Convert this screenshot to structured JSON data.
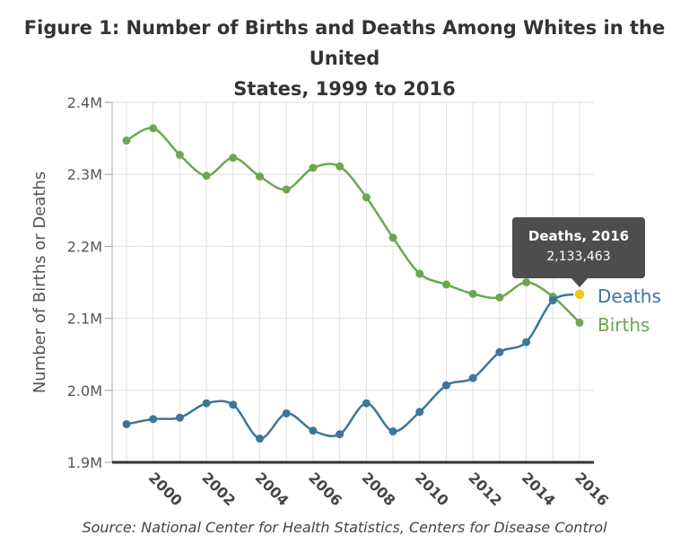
{
  "chart_data": {
    "type": "line",
    "title_line1": "Figure 1: Number of Births and Deaths Among Whites in the United",
    "title_line2": "States, 1999 to 2016",
    "ylabel": "Number of Births or Deaths",
    "source": "Source: National Center for Health Statistics, Centers for Disease Control",
    "x": [
      1999,
      2000,
      2001,
      2002,
      2003,
      2004,
      2005,
      2006,
      2007,
      2008,
      2009,
      2010,
      2011,
      2012,
      2013,
      2014,
      2015,
      2016
    ],
    "xlim": [
      1999,
      2016
    ],
    "x_ticks": [
      "2000",
      "2002",
      "2004",
      "2006",
      "2008",
      "2010",
      "2012",
      "2014",
      "2016"
    ],
    "ylim": [
      1900000,
      2400000
    ],
    "y_ticks": [
      {
        "value": 1900000,
        "label": "1.9M"
      },
      {
        "value": 2000000,
        "label": "2.0M"
      },
      {
        "value": 2100000,
        "label": "2.1M"
      },
      {
        "value": 2200000,
        "label": "2.2M"
      },
      {
        "value": 2300000,
        "label": "2.3M"
      },
      {
        "value": 2400000,
        "label": "2.4M"
      }
    ],
    "grid": true,
    "series": [
      {
        "name": "Births",
        "color": "#6aa84f",
        "values": [
          2347000,
          2364000,
          2327000,
          2298000,
          2323000,
          2297000,
          2279000,
          2309000,
          2311000,
          2268000,
          2212000,
          2162000,
          2147000,
          2134000,
          2129000,
          2150000,
          2130000,
          2094000
        ]
      },
      {
        "name": "Deaths",
        "color": "#3d7699",
        "values": [
          1953000,
          1960000,
          1962000,
          1982000,
          1980000,
          1933000,
          1968000,
          1944000,
          1939000,
          1982000,
          1943000,
          1970000,
          2007000,
          2017000,
          2053000,
          2067000,
          2125000,
          2133463
        ]
      }
    ],
    "highlight": {
      "series": "Deaths",
      "x": 2016,
      "color": "#f5c518",
      "tooltip_title": "Deaths, 2016",
      "tooltip_value": "2,133,463"
    }
  }
}
